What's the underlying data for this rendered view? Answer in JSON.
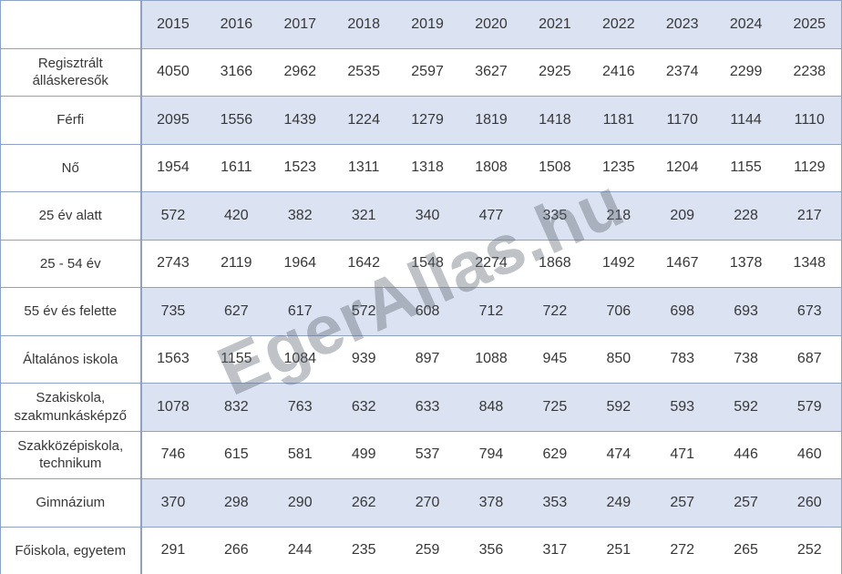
{
  "chart_data": {
    "type": "table",
    "title": "",
    "columns": [
      "",
      "2015",
      "2016",
      "2017",
      "2018",
      "2019",
      "2020",
      "2021",
      "2022",
      "2023",
      "2024",
      "2025"
    ],
    "rows": [
      {
        "label": "Regisztrált álláskeresők",
        "values": [
          4050,
          3166,
          2962,
          2535,
          2597,
          3627,
          2925,
          2416,
          2374,
          2299,
          2238
        ]
      },
      {
        "label": "Férfi",
        "values": [
          2095,
          1556,
          1439,
          1224,
          1279,
          1819,
          1418,
          1181,
          1170,
          1144,
          1110
        ]
      },
      {
        "label": "Nő",
        "values": [
          1954,
          1611,
          1523,
          1311,
          1318,
          1808,
          1508,
          1235,
          1204,
          1155,
          1129
        ]
      },
      {
        "label": "25 év alatt",
        "values": [
          572,
          420,
          382,
          321,
          340,
          477,
          335,
          218,
          209,
          228,
          217
        ]
      },
      {
        "label": "25 - 54 év",
        "values": [
          2743,
          2119,
          1964,
          1642,
          1548,
          2274,
          1868,
          1492,
          1467,
          1378,
          1348
        ]
      },
      {
        "label": "55 év és felette",
        "values": [
          735,
          627,
          617,
          572,
          608,
          712,
          722,
          706,
          698,
          693,
          673
        ]
      },
      {
        "label": "Általános iskola",
        "values": [
          1563,
          1155,
          1084,
          939,
          897,
          1088,
          945,
          850,
          783,
          738,
          687
        ]
      },
      {
        "label": "Szakiskola, szakmunkásképző",
        "values": [
          1078,
          832,
          763,
          632,
          633,
          848,
          725,
          592,
          593,
          592,
          579
        ]
      },
      {
        "label": "Szakközépiskola, technikum",
        "values": [
          746,
          615,
          581,
          499,
          537,
          794,
          629,
          474,
          471,
          446,
          460
        ]
      },
      {
        "label": "Gimnázium",
        "values": [
          370,
          298,
          290,
          262,
          270,
          378,
          353,
          249,
          257,
          257,
          260
        ]
      },
      {
        "label": "Főiskola, egyetem",
        "values": [
          291,
          266,
          244,
          235,
          259,
          356,
          317,
          251,
          272,
          265,
          252
        ]
      }
    ],
    "layout": {
      "grid": "horizontal-lines",
      "striped_rows": true,
      "label_column_separator": true
    }
  },
  "watermark": {
    "text": "EgerAllas.hu"
  },
  "colors": {
    "row_stripe_fill": "#dbe2f1",
    "grid_border": "#8ea2c6",
    "text": "#373737",
    "watermark": "rgba(95,102,115,0.40)"
  }
}
